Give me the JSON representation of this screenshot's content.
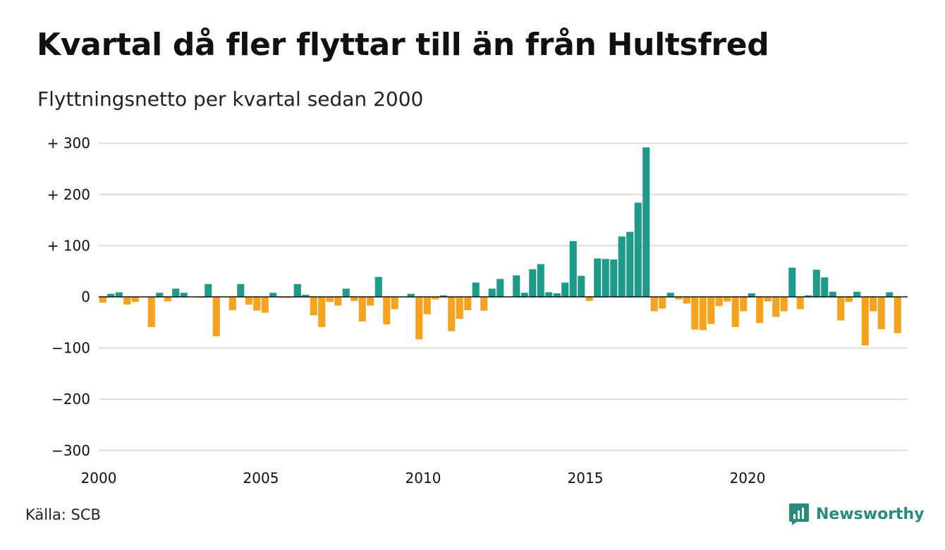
{
  "header": {
    "title": "Kvartal då fler flyttar till än från Hultsfred",
    "subtitle": "Flyttningsnetto per kvartal sedan 2000"
  },
  "footer": {
    "source": "Källa: SCB",
    "brand": "Newsworthy"
  },
  "colors": {
    "positive": "#1f9a8a",
    "negative": "#f5a21f",
    "grid": "#dddddd",
    "baseline": "#111111",
    "brand": "#2a8a7e"
  },
  "chart_data": {
    "type": "bar",
    "title": "Kvartal då fler flyttar till än från Hultsfred",
    "subtitle": "Flyttningsnetto per kvartal sedan 2000",
    "xlabel": "",
    "ylabel": "",
    "start_year": 2000,
    "quarters_per_year": 4,
    "ylim": [
      -320,
      300
    ],
    "yticks": [
      300,
      200,
      100,
      0,
      -100,
      -200,
      -300
    ],
    "ytick_labels": [
      "+ 300",
      "+ 200",
      "+ 100",
      "0",
      "−100",
      "−200",
      "−300"
    ],
    "xticks": [
      2000,
      2005,
      2010,
      2015,
      2020
    ],
    "xtick_labels": [
      "2000",
      "2005",
      "2010",
      "2015",
      "2020"
    ],
    "grid": true,
    "legend": "none",
    "values": [
      -11,
      6,
      9,
      -15,
      -10,
      0,
      -59,
      8,
      -9,
      16,
      8,
      0,
      -2,
      25,
      -77,
      0,
      -26,
      25,
      -15,
      -27,
      -31,
      8,
      -2,
      -2,
      25,
      4,
      -36,
      -59,
      -10,
      -17,
      16,
      -8,
      -48,
      -17,
      39,
      -54,
      -24,
      0,
      6,
      -83,
      -34,
      -5,
      3,
      -67,
      -43,
      -26,
      28,
      -27,
      16,
      35,
      0,
      42,
      8,
      54,
      64,
      9,
      7,
      28,
      109,
      41,
      -8,
      75,
      74,
      73,
      118,
      127,
      184,
      292,
      -28,
      -23,
      8,
      -5,
      -13,
      -64,
      -65,
      -53,
      -18,
      -9,
      -59,
      -28,
      7,
      -51,
      -9,
      -39,
      -28,
      57,
      -24,
      3,
      53,
      38,
      10,
      -46,
      -10,
      10,
      -95,
      -28,
      -63,
      9,
      -71
    ]
  }
}
